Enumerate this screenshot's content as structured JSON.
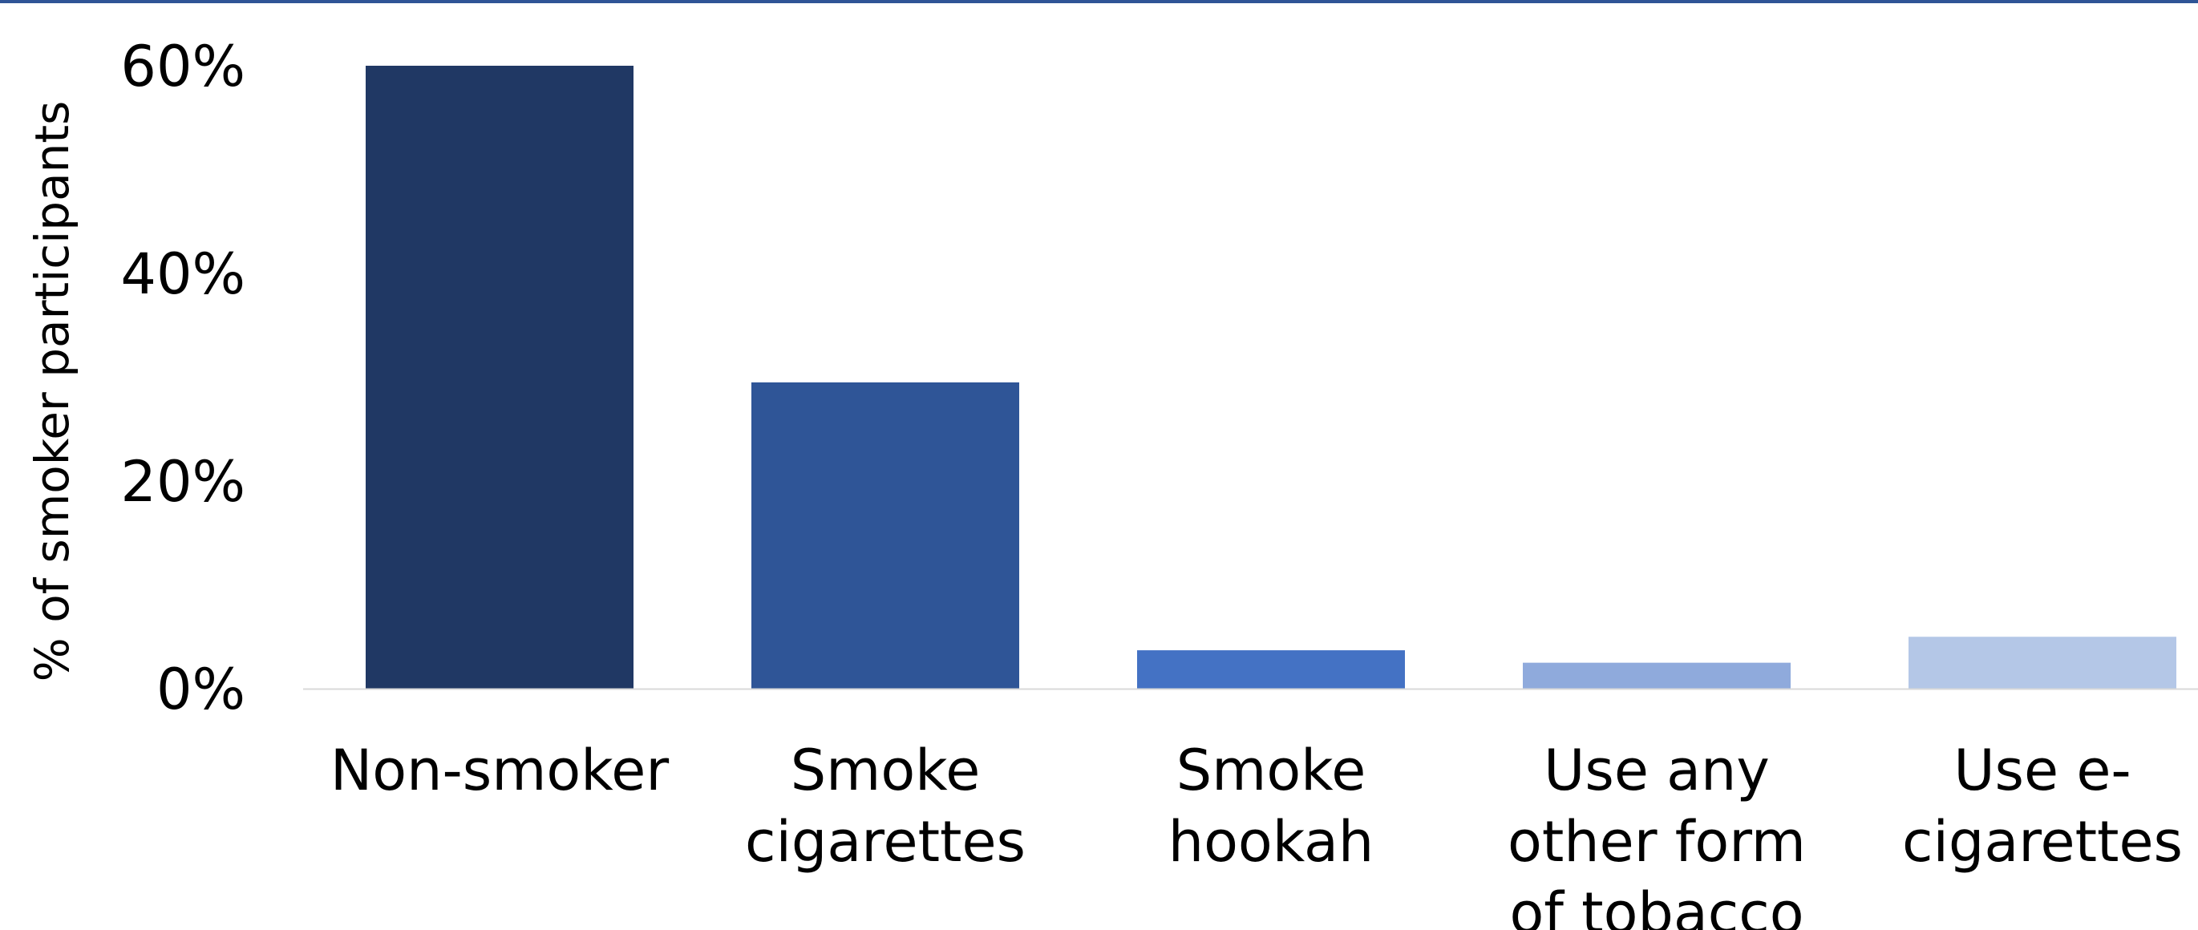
{
  "chart_data": {
    "type": "bar",
    "title": "",
    "xlabel": "",
    "ylabel": "% of smoker participants",
    "ylim": [
      0,
      60
    ],
    "yticks": [
      0,
      20,
      40,
      60
    ],
    "ytick_labels": [
      "0%",
      "20%",
      "40%",
      "60%"
    ],
    "grid": false,
    "legend": "none",
    "categories": [
      [
        "Non-smoker"
      ],
      [
        "Smoke",
        "cigarettes"
      ],
      [
        "Smoke",
        "hookah"
      ],
      [
        "Use any",
        "other form",
        "of tobacco"
      ],
      [
        "Use e-",
        "cigarettes"
      ]
    ],
    "values": [
      60,
      29.5,
      3.7,
      2.5,
      5
    ],
    "colors": [
      "#203864",
      "#2f5597",
      "#4472c4",
      "#8faadc",
      "#b4c7e7"
    ],
    "baseline_color": "#d9d9d9"
  }
}
